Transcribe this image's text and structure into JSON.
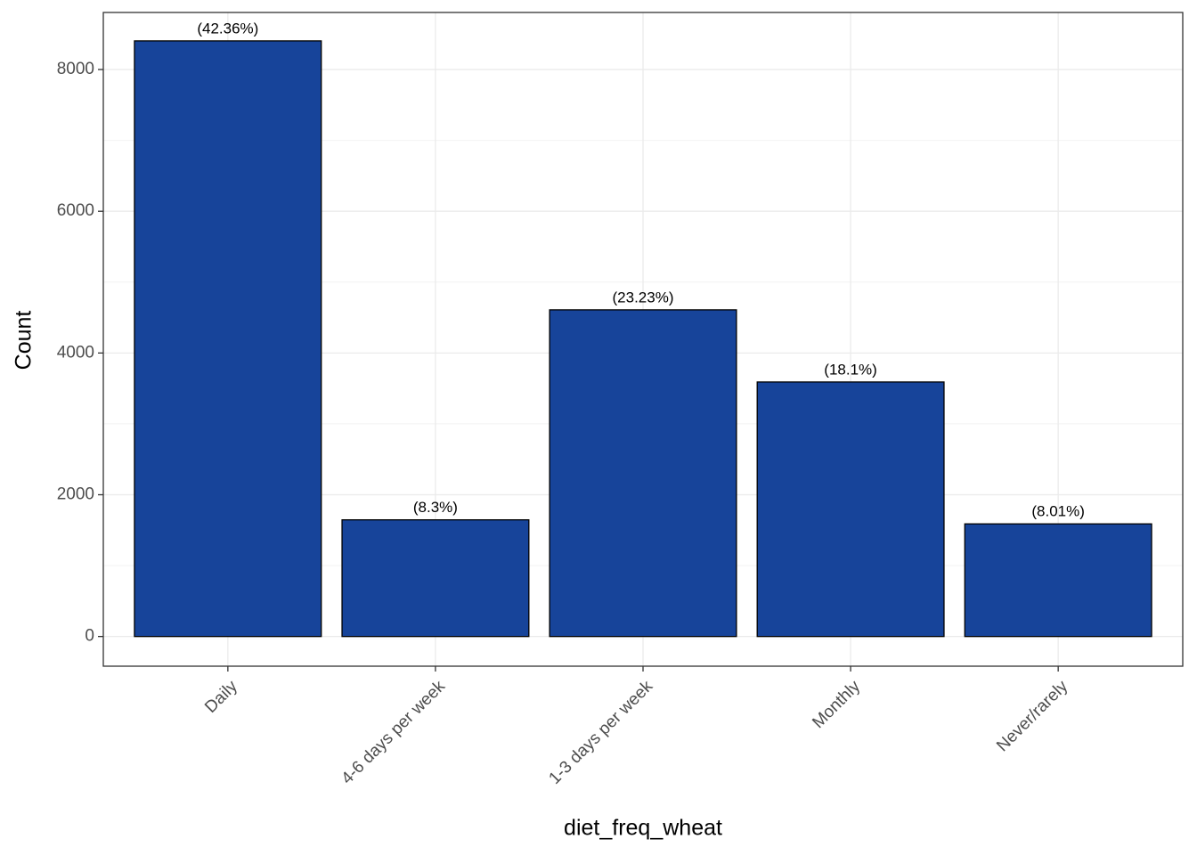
{
  "chart_data": {
    "type": "bar",
    "x_label": "diet_freq_wheat",
    "y_label": "Count",
    "categories": [
      "Daily",
      "4-6 days per week",
      "1-3 days per week",
      "Monthly",
      "Never/rarely"
    ],
    "values": [
      8404,
      1646,
      4609,
      3591,
      1589
    ],
    "percent_labels": [
      "(42.36%)",
      "(8.3%)",
      "(23.23%)",
      "(18.1%)",
      "(8.01%)"
    ],
    "color": "#17449a",
    "ylim": [
      -419,
      8805
    ],
    "yticks": [
      0,
      2000,
      4000,
      6000,
      8000
    ],
    "grid": true,
    "minor_grid": true
  }
}
